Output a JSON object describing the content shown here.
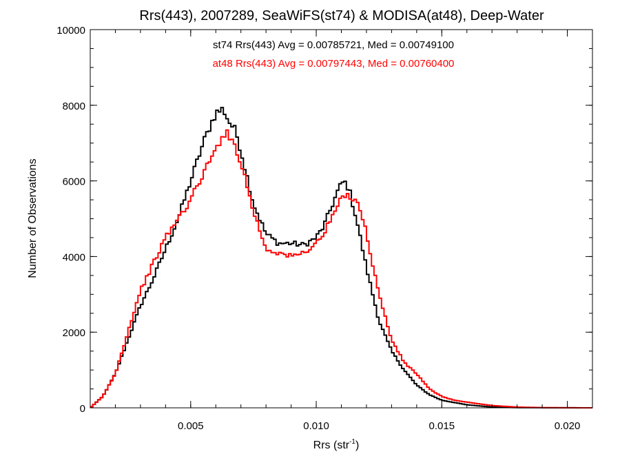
{
  "chart_data": {
    "type": "line",
    "title": "Rrs(443), 2007289, SeaWiFS(st74) & MODISA(at48), Deep-Water",
    "xlabel_main": "Rrs (str",
    "xlabel_sup": "-1",
    "xlabel_close": ")",
    "ylabel": "Number of Observations",
    "xlim": [
      0.001,
      0.021
    ],
    "ylim": [
      0,
      10000
    ],
    "x_ticks": [
      0.005,
      0.01,
      0.015,
      0.02
    ],
    "x_tick_labels": [
      "0.005",
      "0.010",
      "0.015",
      "0.020"
    ],
    "y_ticks": [
      0,
      2000,
      4000,
      6000,
      8000,
      10000
    ],
    "y_tick_labels": [
      "0",
      "2000",
      "4000",
      "6000",
      "8000",
      "10000"
    ],
    "grid": false,
    "step": true,
    "annotations": [
      {
        "text": "st74 Rrs(443) Avg = 0.00785721, Med = 0.00749100",
        "color": "#000000"
      },
      {
        "text": "at48 Rrs(443) Avg = 0.00797443, Med = 0.00760400",
        "color": "#ff0000"
      }
    ],
    "series": [
      {
        "color": "#000000",
        "x": [
          0.001,
          0.0015,
          0.002,
          0.0025,
          0.003,
          0.0035,
          0.004,
          0.0045,
          0.005,
          0.0055,
          0.0058,
          0.006,
          0.0063,
          0.0065,
          0.0068,
          0.007,
          0.0075,
          0.008,
          0.0085,
          0.009,
          0.0095,
          0.01,
          0.0103,
          0.0106,
          0.0109,
          0.0111,
          0.0113,
          0.0116,
          0.012,
          0.0125,
          0.013,
          0.0135,
          0.014,
          0.0145,
          0.015,
          0.016,
          0.017,
          0.018,
          0.021
        ],
        "values": [
          0,
          300,
          900,
          1800,
          2700,
          3400,
          4200,
          5000,
          6000,
          7000,
          7500,
          7800,
          7900,
          7600,
          7300,
          6800,
          5400,
          4600,
          4350,
          4350,
          4300,
          4500,
          4800,
          5300,
          5800,
          6000,
          5800,
          5000,
          3700,
          2300,
          1500,
          1000,
          600,
          350,
          200,
          80,
          20,
          5,
          0
        ]
      },
      {
        "color": "#ff0000",
        "x": [
          0.001,
          0.0015,
          0.002,
          0.0025,
          0.003,
          0.0035,
          0.004,
          0.0045,
          0.005,
          0.0055,
          0.006,
          0.0063,
          0.0065,
          0.0068,
          0.007,
          0.0075,
          0.008,
          0.0085,
          0.009,
          0.0095,
          0.01,
          0.0103,
          0.0106,
          0.0109,
          0.0111,
          0.0114,
          0.0117,
          0.012,
          0.0125,
          0.013,
          0.0135,
          0.014,
          0.0145,
          0.015,
          0.0155,
          0.016,
          0.017,
          0.018,
          0.019,
          0.021
        ],
        "values": [
          0,
          300,
          900,
          2000,
          3100,
          3800,
          4500,
          5000,
          5500,
          6200,
          6800,
          7300,
          7200,
          6900,
          6500,
          5200,
          4200,
          4100,
          4000,
          4100,
          4350,
          4600,
          5000,
          5400,
          5600,
          5600,
          5400,
          4600,
          3000,
          1800,
          1200,
          900,
          500,
          300,
          200,
          150,
          60,
          20,
          5,
          0
        ]
      }
    ]
  }
}
